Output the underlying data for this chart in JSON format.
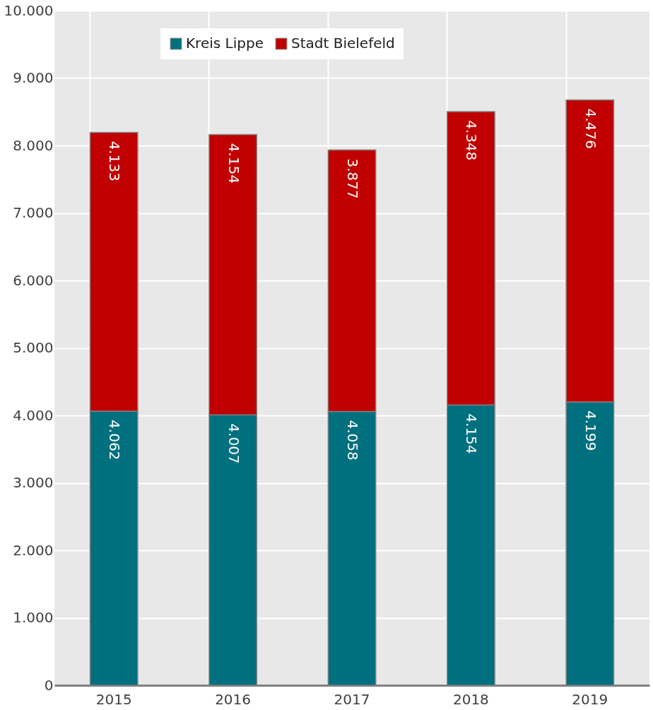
{
  "chart_data": {
    "type": "bar",
    "stacked": true,
    "categories": [
      "2015",
      "2016",
      "2017",
      "2018",
      "2019"
    ],
    "series": [
      {
        "name": "Kreis Lippe",
        "color": "#00707f",
        "values": [
          4062,
          4007,
          4058,
          4154,
          4199
        ],
        "value_labels": [
          "4.062",
          "4.007",
          "4.058",
          "4.154",
          "4.199"
        ]
      },
      {
        "name": "Stadt Bielefeld",
        "color": "#c00000",
        "values": [
          4133,
          4154,
          3877,
          4348,
          4476
        ],
        "value_labels": [
          "4.133",
          "4.154",
          "3.877",
          "4.348",
          "4.476"
        ]
      }
    ],
    "ylim": [
      0,
      10000
    ],
    "yticks": [
      {
        "value": 0,
        "label": "0"
      },
      {
        "value": 1000,
        "label": "1.000"
      },
      {
        "value": 2000,
        "label": "2.000"
      },
      {
        "value": 3000,
        "label": "3.000"
      },
      {
        "value": 4000,
        "label": "4.000"
      },
      {
        "value": 5000,
        "label": "5.000"
      },
      {
        "value": 6000,
        "label": "6.000"
      },
      {
        "value": 7000,
        "label": "7.000"
      },
      {
        "value": 8000,
        "label": "8.000"
      },
      {
        "value": 9000,
        "label": "9.000"
      },
      {
        "value": 10000,
        "label": "10.000"
      }
    ],
    "grid": true,
    "legend": "top left"
  }
}
